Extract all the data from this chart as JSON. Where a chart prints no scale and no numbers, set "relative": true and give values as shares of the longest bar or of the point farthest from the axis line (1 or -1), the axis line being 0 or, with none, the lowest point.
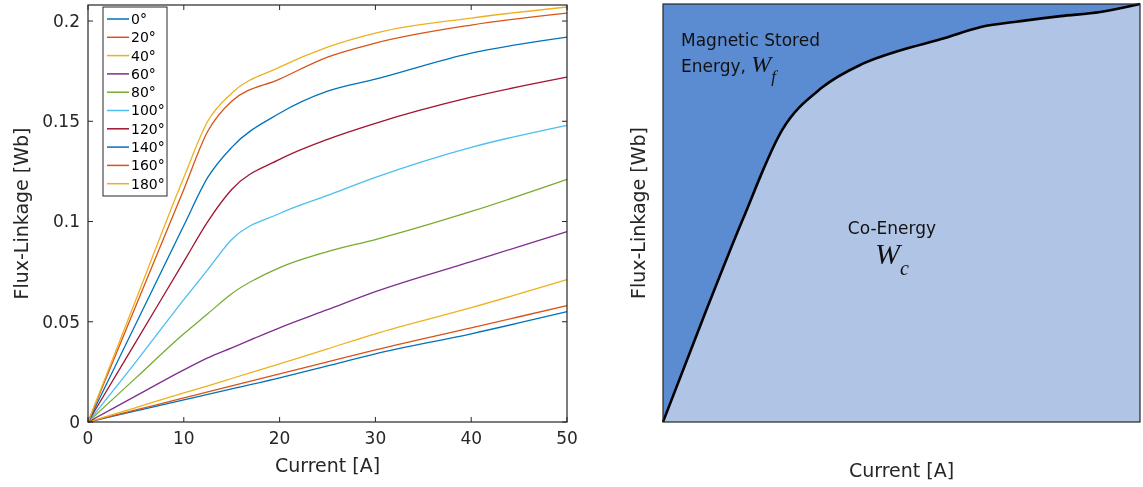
{
  "chart_data": [
    {
      "type": "line",
      "xlabel": "Current [A]",
      "ylabel": "Flux-Linkage [Wb]",
      "xlim": [
        0,
        50
      ],
      "ylim": [
        0,
        0.208
      ],
      "xticks": [
        0,
        10,
        20,
        30,
        40,
        50
      ],
      "yticks": [
        0,
        0.05,
        0.1,
        0.15,
        0.2
      ],
      "grid": false,
      "legend": "top left",
      "line_style": "solid",
      "marker": "none",
      "x": [
        0,
        5,
        10,
        12.5,
        15,
        20,
        25,
        30,
        40,
        50
      ],
      "series": [
        {
          "name": "0°",
          "color": "#0072bd",
          "values": [
            0,
            0.0055,
            0.011,
            0.0138,
            0.0165,
            0.022,
            0.028,
            0.034,
            0.044,
            0.055
          ]
        },
        {
          "name": "20°",
          "color": "#d95319",
          "values": [
            0,
            0.006,
            0.012,
            0.015,
            0.018,
            0.024,
            0.03,
            0.036,
            0.047,
            0.058
          ]
        },
        {
          "name": "40°",
          "color": "#edb120",
          "values": [
            0,
            0.0072,
            0.0145,
            0.018,
            0.0217,
            0.029,
            0.0365,
            0.044,
            0.057,
            0.071
          ]
        },
        {
          "name": "60°",
          "color": "#7e2f8e",
          "values": [
            0,
            0.013,
            0.026,
            0.032,
            0.037,
            0.047,
            0.056,
            0.065,
            0.08,
            0.095
          ]
        },
        {
          "name": "80°",
          "color": "#77ac30",
          "values": [
            0,
            0.022,
            0.044,
            0.054,
            0.064,
            0.077,
            0.085,
            0.091,
            0.105,
            0.121
          ]
        },
        {
          "name": "100°",
          "color": "#4dbeee",
          "values": [
            0,
            0.03,
            0.061,
            0.076,
            0.091,
            0.104,
            0.113,
            0.122,
            0.137,
            0.148
          ]
        },
        {
          "name": "120°",
          "color": "#a2142f",
          "values": [
            0,
            0.04,
            0.08,
            0.1,
            0.116,
            0.131,
            0.141,
            0.149,
            0.162,
            0.172
          ]
        },
        {
          "name": "140°",
          "color": "#0072bd",
          "values": [
            0,
            0.049,
            0.098,
            0.122,
            0.137,
            0.154,
            0.165,
            0.171,
            0.184,
            0.192
          ]
        },
        {
          "name": "160°",
          "color": "#d95319",
          "values": [
            0,
            0.058,
            0.116,
            0.145,
            0.16,
            0.171,
            0.182,
            0.189,
            0.198,
            0.204
          ]
        },
        {
          "name": "180°",
          "color": "#edb120",
          "values": [
            0,
            0.061,
            0.122,
            0.15,
            0.164,
            0.177,
            0.187,
            0.194,
            0.2015,
            0.207
          ]
        }
      ]
    },
    {
      "type": "area",
      "relative": true,
      "xlabel": "Current [A]",
      "ylabel": "Flux-Linkage [Wb]",
      "tick_labels": false,
      "categories": [
        null,
        null,
        null,
        null,
        null,
        null,
        null,
        null,
        null,
        null,
        null,
        null,
        null
      ],
      "series": [
        {
          "color": "#b0c4e6",
          "values": [
            0,
            0.246,
            0.483,
            0.699,
            0.8,
            0.856,
            0.89,
            0.916,
            0.945,
            0.959,
            0.971,
            0.981,
            1
          ]
        }
      ],
      "annotations": [
        "Magnetic Stored\nEnergy, W$_{f}$",
        "Co-Energy\nW$_{c}$"
      ]
    }
  ]
}
